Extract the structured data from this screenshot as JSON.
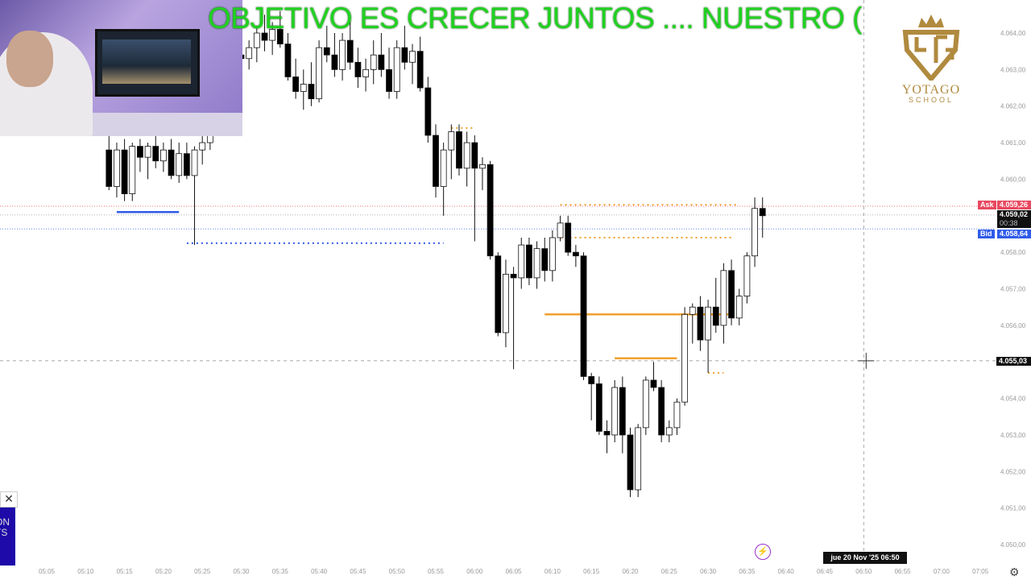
{
  "banner": {
    "text": "OBJETIVO ES CRECER JUNTOS ....   NUESTRO ("
  },
  "logo": {
    "name": "YOTAGO",
    "sub": "SCHOOL",
    "monogram": "YTG",
    "color": "#b08a3e"
  },
  "promo": {
    "text_line1": "ON",
    "text_line2": "TS",
    "close_icon": "close-icon"
  },
  "crosshair": {
    "price_label": "4.055,03",
    "time_label": "jue 20 Nov '25   06:50"
  },
  "quotes": {
    "ask_tag": "Ask",
    "ask_price": "4.059,26",
    "ask_color": "#e8485f",
    "last_price": "4.059,02",
    "countdown": "00:38",
    "bid_tag": "Bid",
    "bid_price": "4.058,64",
    "bid_color": "#2f5be8"
  },
  "chart_data": {
    "type": "candlestick",
    "ylim": [
      4050,
      4064.3
    ],
    "y_ticks": [
      "4.064,00",
      "4.063,00",
      "4.062,00",
      "4.061,00",
      "4.060,00",
      "4.058,00",
      "4.057,00",
      "4.056,00",
      "4.054,00",
      "4.053,00",
      "4.052,00",
      "4.051,00",
      "4.050,00"
    ],
    "y_tick_values": [
      4064,
      4063,
      4062,
      4061,
      4060,
      4058,
      4057,
      4056,
      4054,
      4053,
      4052,
      4051,
      4050
    ],
    "x_ticks": [
      "05:05",
      "05:10",
      "05:15",
      "05:20",
      "05:25",
      "05:30",
      "05:35",
      "05:40",
      "05:45",
      "05:50",
      "05:55",
      "06:00",
      "06:05",
      "06:10",
      "06:15",
      "06:20",
      "06:25",
      "06:30",
      "06:35",
      "06:40",
      "06:45",
      "06:50",
      "06:55",
      "07:00",
      "07:05"
    ],
    "x_start": "05:05",
    "candles": [
      [
        "05:13",
        4060.8,
        4061.2,
        4059.7,
        4059.8
      ],
      [
        "05:14",
        4059.8,
        4061.0,
        4059.5,
        4060.8
      ],
      [
        "05:15",
        4060.8,
        4061.1,
        4059.4,
        4059.6
      ],
      [
        "05:16",
        4059.6,
        4061.0,
        4059.4,
        4060.9
      ],
      [
        "05:17",
        4060.9,
        4061.1,
        4060.2,
        4060.6
      ],
      [
        "05:18",
        4060.6,
        4061.0,
        4060.0,
        4060.9
      ],
      [
        "05:19",
        4060.9,
        4061.2,
        4060.3,
        4060.5
      ],
      [
        "05:20",
        4060.5,
        4061.0,
        4060.2,
        4060.8
      ],
      [
        "05:21",
        4060.8,
        4061.1,
        4060.0,
        4060.1
      ],
      [
        "05:22",
        4060.1,
        4061.0,
        4059.9,
        4060.7
      ],
      [
        "05:23",
        4060.7,
        4061.0,
        4060.0,
        4060.1
      ],
      [
        "05:24",
        4060.1,
        4060.9,
        4058.2,
        4060.8
      ],
      [
        "05:25",
        4060.8,
        4061.2,
        4060.4,
        4061.0
      ],
      [
        "05:26",
        4061.0,
        4062.0,
        4060.8,
        4061.8
      ],
      [
        "05:27",
        4061.8,
        4062.8,
        4061.6,
        4062.6
      ],
      [
        "05:28",
        4062.6,
        4063.4,
        4062.3,
        4063.2
      ],
      [
        "05:29",
        4063.2,
        4063.8,
        4062.9,
        4063.4
      ],
      [
        "05:30",
        4063.4,
        4064.0,
        4063.0,
        4063.3
      ],
      [
        "05:31",
        4063.3,
        4063.8,
        4063.0,
        4063.6
      ],
      [
        "05:32",
        4063.6,
        4064.2,
        4063.2,
        4064.0
      ],
      [
        "05:33",
        4064.0,
        4064.5,
        4063.5,
        4063.8
      ],
      [
        "05:34",
        4063.8,
        4064.3,
        4063.4,
        4064.1
      ],
      [
        "05:35",
        4064.1,
        4064.6,
        4063.6,
        4063.7
      ],
      [
        "05:36",
        4063.7,
        4064.0,
        4062.7,
        4062.8
      ],
      [
        "05:37",
        4062.8,
        4063.3,
        4062.2,
        4062.4
      ],
      [
        "05:38",
        4062.4,
        4063.0,
        4061.9,
        4062.6
      ],
      [
        "05:39",
        4062.6,
        4063.2,
        4062.0,
        4062.2
      ],
      [
        "05:40",
        4062.2,
        4063.8,
        4062.1,
        4063.6
      ],
      [
        "05:41",
        4063.6,
        4064.2,
        4063.2,
        4063.4
      ],
      [
        "05:42",
        4063.4,
        4064.0,
        4062.8,
        4063.0
      ],
      [
        "05:43",
        4063.0,
        4064.0,
        4062.7,
        4063.8
      ],
      [
        "05:44",
        4063.8,
        4064.4,
        4063.0,
        4063.2
      ],
      [
        "05:45",
        4063.2,
        4063.6,
        4062.5,
        4062.8
      ],
      [
        "05:46",
        4062.8,
        4063.3,
        4062.4,
        4063.0
      ],
      [
        "05:47",
        4063.0,
        4063.8,
        4062.6,
        4063.4
      ],
      [
        "05:48",
        4063.4,
        4064.0,
        4062.8,
        4063.0
      ],
      [
        "05:49",
        4063.0,
        4063.6,
        4062.2,
        4062.4
      ],
      [
        "05:50",
        4062.4,
        4063.8,
        4062.2,
        4063.6
      ],
      [
        "05:51",
        4063.6,
        4064.2,
        4063.0,
        4063.2
      ],
      [
        "05:52",
        4063.2,
        4063.7,
        4062.6,
        4063.5
      ],
      [
        "05:53",
        4063.5,
        4063.9,
        4062.4,
        4062.5
      ],
      [
        "05:54",
        4062.5,
        4062.8,
        4061.0,
        4061.2
      ],
      [
        "05:55",
        4061.2,
        4061.5,
        4059.5,
        4059.8
      ],
      [
        "05:56",
        4059.8,
        4061.0,
        4059.0,
        4060.8
      ],
      [
        "05:57",
        4060.8,
        4061.5,
        4060.0,
        4061.3
      ],
      [
        "05:58",
        4061.3,
        4061.5,
        4060.1,
        4060.3
      ],
      [
        "05:59",
        4060.3,
        4061.3,
        4059.8,
        4061.0
      ],
      [
        "06:00",
        4061.0,
        4061.2,
        4058.3,
        4060.3
      ],
      [
        "06:01",
        4060.3,
        4060.6,
        4059.7,
        4060.4
      ],
      [
        "06:02",
        4060.4,
        4060.5,
        4057.8,
        4057.9
      ],
      [
        "06:03",
        4057.9,
        4058.0,
        4055.7,
        4055.8
      ],
      [
        "06:04",
        4055.8,
        4057.8,
        4055.4,
        4057.4
      ],
      [
        "06:05",
        4057.4,
        4057.6,
        4054.8,
        4057.3
      ],
      [
        "06:06",
        4057.3,
        4058.4,
        4057.0,
        4058.2
      ],
      [
        "06:07",
        4058.2,
        4058.4,
        4057.1,
        4057.3
      ],
      [
        "06:08",
        4057.3,
        4058.3,
        4057.0,
        4058.1
      ],
      [
        "06:09",
        4058.1,
        4058.4,
        4057.2,
        4057.5
      ],
      [
        "06:10",
        4057.5,
        4058.6,
        4057.2,
        4058.4
      ],
      [
        "06:11",
        4058.4,
        4059.0,
        4058.3,
        4058.8
      ],
      [
        "06:12",
        4058.8,
        4059.0,
        4057.9,
        4058.0
      ],
      [
        "06:13",
        4058.0,
        4058.2,
        4057.6,
        4057.9
      ],
      [
        "06:14",
        4057.9,
        4058.0,
        4054.5,
        4054.6
      ],
      [
        "06:15",
        4054.6,
        4054.7,
        4053.4,
        4054.4
      ],
      [
        "06:16",
        4054.4,
        4054.6,
        4053.0,
        4053.1
      ],
      [
        "06:17",
        4053.1,
        4053.4,
        4052.5,
        4053.0
      ],
      [
        "06:18",
        4053.0,
        4054.5,
        4052.8,
        4054.3
      ],
      [
        "06:19",
        4054.3,
        4054.6,
        4052.5,
        4053.0
      ],
      [
        "06:20",
        4053.0,
        4053.2,
        4051.3,
        4051.5
      ],
      [
        "06:21",
        4051.5,
        4053.3,
        4051.3,
        4053.2
      ],
      [
        "06:22",
        4053.2,
        4054.6,
        4053.0,
        4054.5
      ],
      [
        "06:23",
        4054.5,
        4055.0,
        4054.2,
        4054.3
      ],
      [
        "06:24",
        4054.3,
        4054.5,
        4052.8,
        4053.0
      ],
      [
        "06:25",
        4053.0,
        4053.4,
        4052.8,
        4053.2
      ],
      [
        "06:26",
        4053.2,
        4054.0,
        4053.0,
        4053.9
      ],
      [
        "06:27",
        4053.9,
        4056.5,
        4053.8,
        4056.3
      ],
      [
        "06:28",
        4056.3,
        4056.6,
        4055.5,
        4056.5
      ],
      [
        "06:29",
        4056.5,
        4056.8,
        4055.3,
        4055.6
      ],
      [
        "06:30",
        4055.6,
        4056.7,
        4054.7,
        4056.5
      ],
      [
        "06:31",
        4056.5,
        4057.3,
        4055.8,
        4056.0
      ],
      [
        "06:32",
        4056.0,
        4057.7,
        4055.5,
        4057.5
      ],
      [
        "06:33",
        4057.5,
        4057.8,
        4056.0,
        4056.2
      ],
      [
        "06:34",
        4056.2,
        4057.0,
        4056.0,
        4056.8
      ],
      [
        "06:35",
        4056.8,
        4058.0,
        4056.6,
        4057.9
      ],
      [
        "06:36",
        4057.9,
        4059.5,
        4057.6,
        4059.2
      ],
      [
        "06:37",
        4059.2,
        4059.5,
        4058.4,
        4059.0
      ]
    ],
    "levels": [
      {
        "price": 4059.1,
        "from": "05:14",
        "to": "05:22",
        "color": "#2f5be8",
        "style": "solid"
      },
      {
        "price": 4058.25,
        "from": "05:23",
        "to": "05:56",
        "color": "#2f5be8",
        "style": "dotted"
      },
      {
        "price": 4059.3,
        "from": "06:11",
        "to": "06:34",
        "color": "#f0a030",
        "style": "dotted"
      },
      {
        "price": 4058.4,
        "from": "06:11",
        "to": "06:33",
        "color": "#f0a030",
        "style": "dotted"
      },
      {
        "price": 4056.3,
        "from": "06:09",
        "to": "06:33",
        "color": "#f0a030",
        "style": "solid"
      },
      {
        "price": 4055.1,
        "from": "06:18",
        "to": "06:26",
        "color": "#f0a030",
        "style": "solid"
      },
      {
        "price": 4054.7,
        "from": "06:30",
        "to": "06:32",
        "color": "#f0a030",
        "style": "dotted"
      },
      {
        "price": 4061.4,
        "from": "05:57",
        "to": "06:00",
        "color": "#f0a030",
        "style": "dotted"
      }
    ],
    "crosshair_price": 4055.03,
    "crosshair_time": "06:50",
    "ask": 4059.26,
    "last": 4059.02,
    "bid": 4058.64
  }
}
